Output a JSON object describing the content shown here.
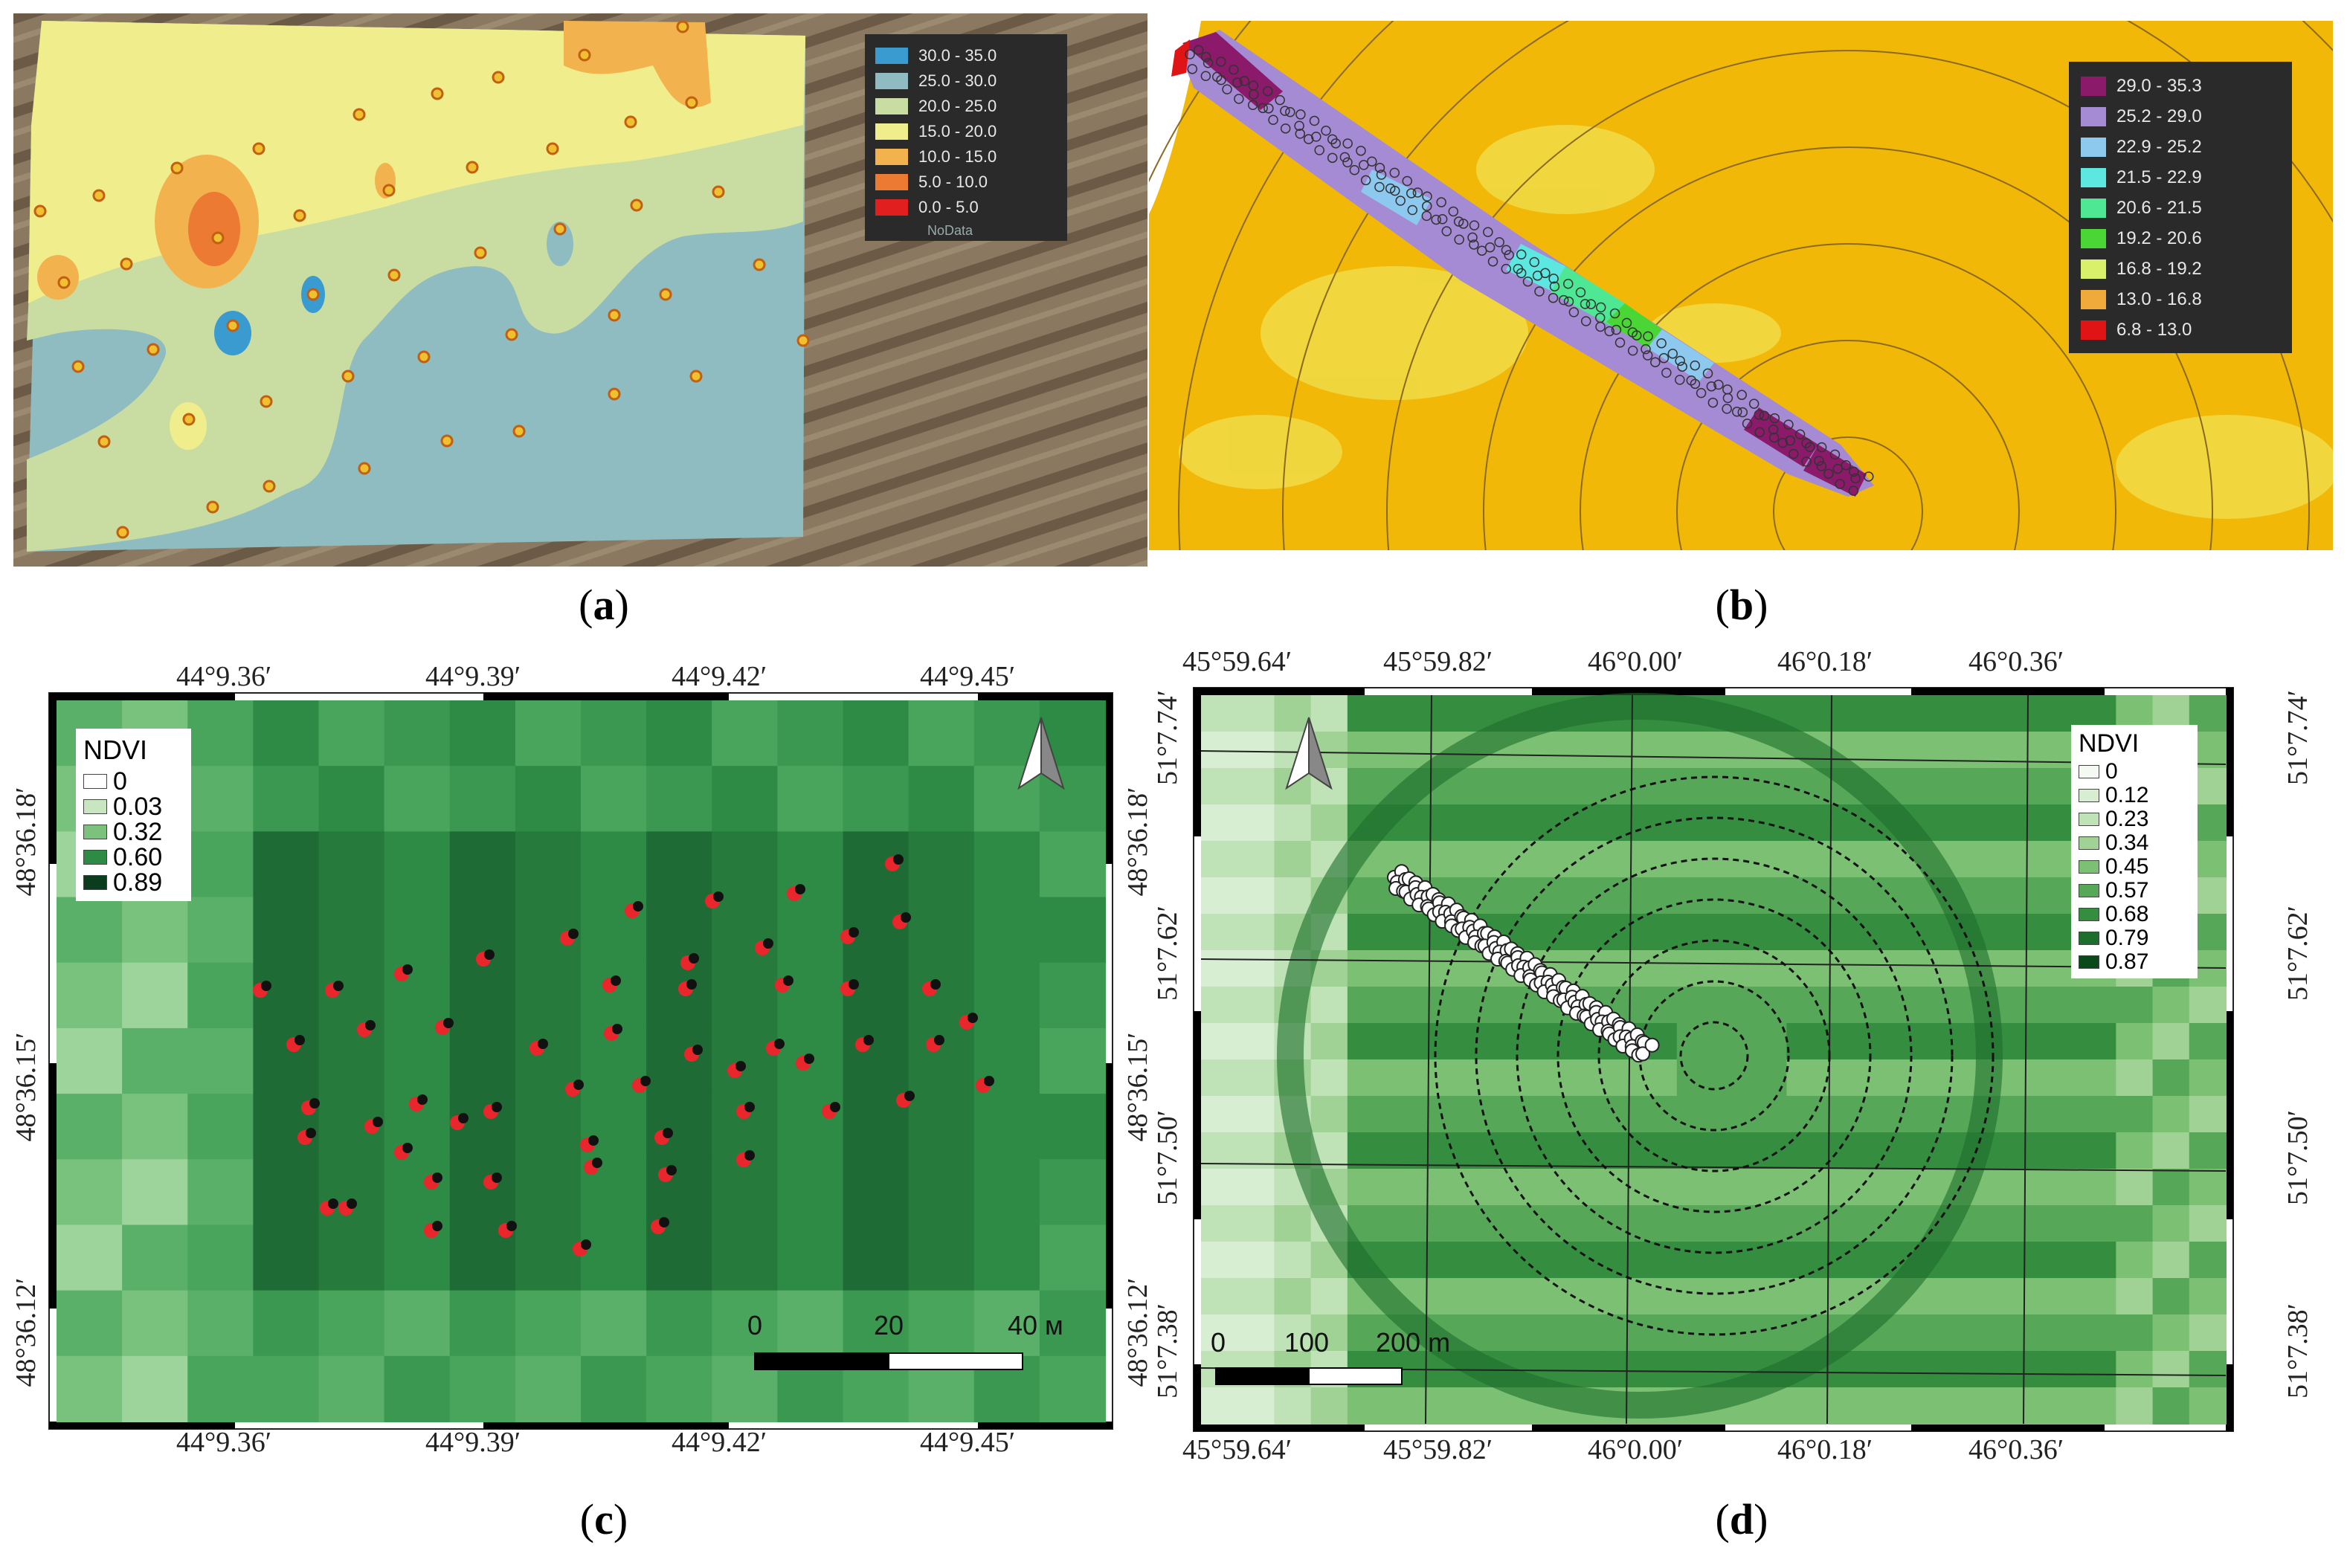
{
  "panels": {
    "a": {
      "caption": "a",
      "legend": {
        "items": [
          {
            "label": "30.0 - 35.0",
            "color": "#3a9bd0"
          },
          {
            "label": "25.0 - 30.0",
            "color": "#8ebcc0"
          },
          {
            "label": "20.0 - 25.0",
            "color": "#c9dca2"
          },
          {
            "label": "15.0 - 20.0",
            "color": "#f0ee8c"
          },
          {
            "label": "10.0 - 15.0",
            "color": "#f2b24e"
          },
          {
            "label": "5.0 - 10.0",
            "color": "#ec7a32"
          },
          {
            "label": "0.0 - 5.0",
            "color": "#e21f1f"
          }
        ],
        "nodata": "NoData"
      }
    },
    "b": {
      "caption": "b",
      "legend": {
        "items": [
          {
            "label": "29.0 - 35.3",
            "color": "#8b1a6b"
          },
          {
            "label": "25.2 - 29.0",
            "color": "#a58ad4"
          },
          {
            "label": "22.9 - 25.2",
            "color": "#8dc9ef"
          },
          {
            "label": "21.5 - 22.9",
            "color": "#5ce8e0"
          },
          {
            "label": "20.6 - 21.5",
            "color": "#4ee894"
          },
          {
            "label": "19.2 - 20.6",
            "color": "#4ad634"
          },
          {
            "label": "16.8 - 19.2",
            "color": "#d8f06a"
          },
          {
            "label": "13.0 - 16.8",
            "color": "#f0aa3c"
          },
          {
            "label": "6.8 - 13.0",
            "color": "#e01414"
          }
        ]
      }
    },
    "c": {
      "caption": "c",
      "top_ticks": [
        "44°9.36′",
        "44°9.39′",
        "44°9.42′",
        "44°9.45′"
      ],
      "bottom_ticks": [
        "44°9.36′",
        "44°9.39′",
        "44°9.42′",
        "44°9.45′"
      ],
      "left_ticks": [
        "48°36.18′",
        "48°36.15′",
        "48°36.12′"
      ],
      "right_ticks": [
        "48°36.18′",
        "48°36.15′",
        "48°36.12′"
      ],
      "legend": {
        "title": "NDVI",
        "items": [
          {
            "label": "0",
            "color": "#ffffff"
          },
          {
            "label": "0.03",
            "color": "#c8e6c0"
          },
          {
            "label": "0.32",
            "color": "#7cc27c"
          },
          {
            "label": "0.60",
            "color": "#2e8b45"
          },
          {
            "label": "0.89",
            "color": "#0a3d1e"
          }
        ]
      },
      "scale": {
        "labels": [
          "0",
          "20",
          "40 м"
        ]
      },
      "north_icon": "north-arrow"
    },
    "d": {
      "caption": "d",
      "top_ticks": [
        "45°59.64′",
        "45°59.82′",
        "46°0.00′",
        "46°0.18′",
        "46°0.36′"
      ],
      "bottom_ticks": [
        "45°59.64′",
        "45°59.82′",
        "46°0.00′",
        "46°0.18′",
        "46°0.36′"
      ],
      "left_ticks": [
        "51°7.74′",
        "51°7.62′",
        "51°7.50′",
        "51°7.38′"
      ],
      "right_ticks": [
        "51°7.74′",
        "51°7.62′",
        "51°7.50′",
        "51°7.38′"
      ],
      "legend": {
        "title": "NDVI",
        "items": [
          {
            "label": "0",
            "color": "#f4faf2"
          },
          {
            "label": "0.12",
            "color": "#d8eed2"
          },
          {
            "label": "0.23",
            "color": "#bfe2b6"
          },
          {
            "label": "0.34",
            "color": "#9fd294"
          },
          {
            "label": "0.45",
            "color": "#7cc074"
          },
          {
            "label": "0.57",
            "color": "#56a858"
          },
          {
            "label": "0.68",
            "color": "#358d40"
          },
          {
            "label": "0.79",
            "color": "#1d6e2c"
          },
          {
            "label": "0.87",
            "color": "#0a4a1a"
          }
        ]
      },
      "scale": {
        "labels": [
          "0",
          "100",
          "200 m"
        ]
      },
      "north_icon": "north-arrow"
    }
  }
}
